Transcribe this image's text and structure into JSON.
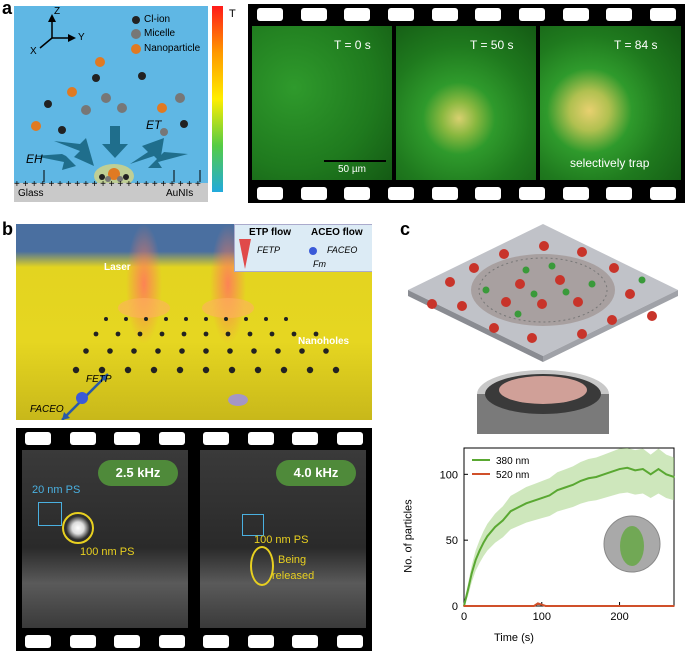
{
  "panels": {
    "a": {
      "letter": "a",
      "schematic": {
        "axes": {
          "z": "Z",
          "y": "Y",
          "x": "X"
        },
        "legend": [
          "Cl-ion",
          "Micelle",
          "Nanoparticle"
        ],
        "field_labels": {
          "et": "ET",
          "eh": "EH"
        },
        "substrate": {
          "left": "Glass",
          "right": "AuNIs"
        },
        "colorbar_label": "T"
      },
      "frames": [
        {
          "label": "T = 0 s"
        },
        {
          "label": "T = 50 s"
        },
        {
          "label": "T = 84 s"
        }
      ],
      "scale_bar": "50 µm",
      "annotation": "selectively trap"
    },
    "b": {
      "letter": "b",
      "schematic": {
        "laser": "Laser",
        "nanoholes": "Nanoholes",
        "inset": {
          "etp_flow": "ETP flow",
          "aceo_flow": "ACEO flow",
          "f_etp": "FETP",
          "f_aceo": "FACEO",
          "f_m": "Fm"
        },
        "force_labels": {
          "f_etp": "FETP",
          "f_aceo": "FACEO"
        }
      },
      "frames": [
        {
          "badge": "2.5 kHz",
          "label_small": "20 nm PS",
          "label_large": "100 nm PS"
        },
        {
          "badge": "4.0 kHz",
          "label_large": "100 nm PS",
          "note_line1": "Being",
          "note_line2": "released"
        }
      ]
    },
    "c": {
      "letter": "c",
      "chart_data": {
        "type": "line",
        "xlabel": "Time (s)",
        "ylabel": "No. of particles",
        "xlim": [
          0,
          270
        ],
        "ylim": [
          0,
          120
        ],
        "xticks": [
          0,
          100,
          200
        ],
        "yticks": [
          0,
          50,
          100
        ],
        "legend_position": "top-left",
        "series": [
          {
            "name": "380 nm",
            "color": "#5aa832",
            "x": [
              0,
              5,
              10,
              15,
              20,
              25,
              30,
              40,
              50,
              60,
              70,
              80,
              90,
              100,
              110,
              120,
              130,
              140,
              150,
              160,
              170,
              180,
              190,
              200,
              210,
              220,
              230,
              240,
              250,
              260,
              270
            ],
            "y": [
              0,
              12,
              25,
              35,
              42,
              48,
              53,
              60,
              65,
              72,
              75,
              78,
              80,
              82,
              84,
              88,
              90,
              92,
              95,
              97,
              98,
              100,
              102,
              104,
              105,
              103,
              104,
              100,
              104,
              100,
              98
            ]
          },
          {
            "name": "520 nm",
            "color": "#d0502a",
            "x": [
              0,
              50,
              90,
              95,
              100,
              105,
              150,
              200,
              270
            ],
            "y": [
              0,
              0,
              0,
              2,
              1,
              0,
              0,
              0,
              0
            ]
          }
        ]
      }
    }
  }
}
